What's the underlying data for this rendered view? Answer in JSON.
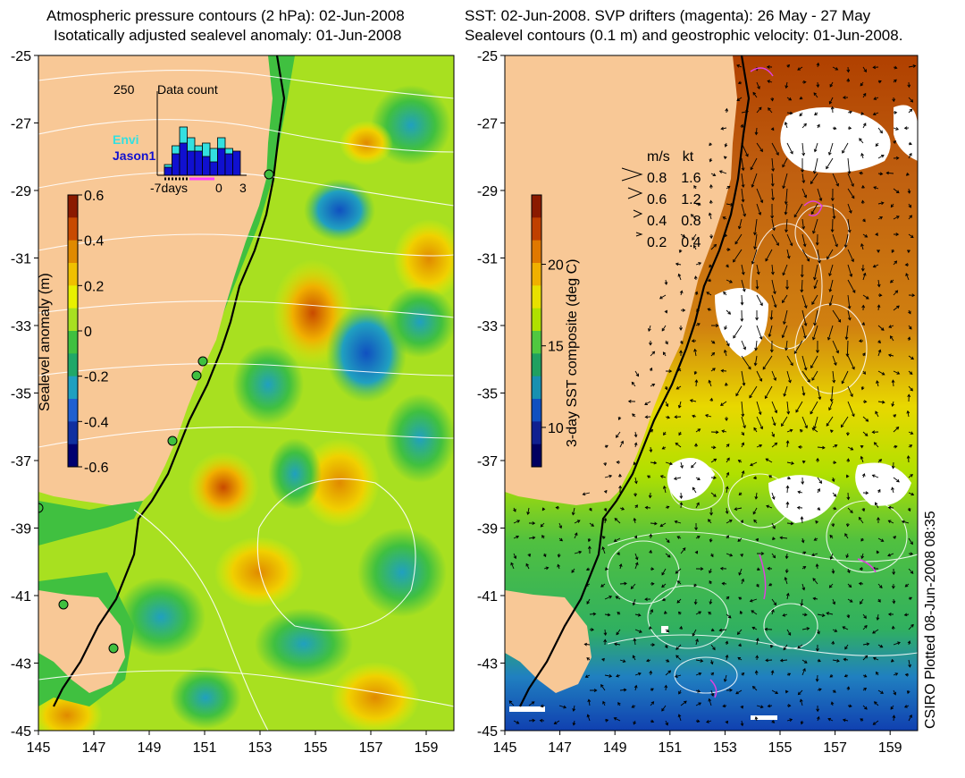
{
  "left": {
    "title_line1": "Atmospheric pressure contours (2 hPa): 02-Jun-2008",
    "title_line2": "Isotatically adjusted sealevel anomaly: 01-Jun-2008",
    "colorbar": {
      "label": "Sealevel anomaly (m)",
      "ticks": [
        "0.6",
        "0.4",
        "0.2",
        "0",
        "-0.2",
        "-0.4",
        "-0.6"
      ],
      "colors": [
        "#8b1a00",
        "#c84a00",
        "#e08a00",
        "#f0c000",
        "#e8f000",
        "#a8e020",
        "#40c040",
        "#20a868",
        "#20a0c0",
        "#2060d0",
        "#1030a0",
        "#000070"
      ]
    },
    "inset": {
      "title": "Data count",
      "ymax": "250",
      "legend": [
        "Envi",
        "Jason1"
      ],
      "legend_colors": [
        "#33e0e0",
        "#1010d0"
      ],
      "xticks": [
        "-7days",
        "0",
        "3"
      ],
      "cyan_bars": [
        0.2,
        0.55,
        0.9,
        0.7,
        0.55,
        0.6,
        0.5,
        0.7,
        0.5,
        0
      ],
      "blue_bars": [
        0.15,
        0.4,
        0.6,
        0.45,
        0.45,
        0.35,
        0.25,
        0.5,
        0.4,
        0.45
      ]
    }
  },
  "right": {
    "title_line1": "SST: 02-Jun-2008. SVP drifters (magenta): 26 May - 27 May",
    "title_line2": "Sealevel contours (0.1 m) and geostrophic velocity: 01-Jun-2008.",
    "colorbar": {
      "label": "3-day SST composite (deg C)",
      "ticks": [
        "20",
        "15",
        "10"
      ],
      "colors": [
        "#8b1a00",
        "#c04000",
        "#e07800",
        "#f0b000",
        "#e8e000",
        "#b0e000",
        "#50c840",
        "#20a060",
        "#1890b0",
        "#1050c0",
        "#102090",
        "#000060"
      ]
    },
    "velocity_legend": {
      "header_ms": "m/s",
      "header_kt": "kt",
      "rows": [
        {
          "ms": "0.8",
          "kt": "1.6"
        },
        {
          "ms": "0.6",
          "kt": "1.2"
        },
        {
          "ms": "0.4",
          "kt": "0.8"
        },
        {
          "ms": "0.2",
          "kt": "0.4"
        }
      ]
    }
  },
  "axes": {
    "y_ticks": [
      "-25",
      "-27",
      "-29",
      "-31",
      "-33",
      "-35",
      "-37",
      "-39",
      "-41",
      "-43",
      "-45"
    ],
    "x_ticks": [
      "145",
      "147",
      "149",
      "151",
      "153",
      "155",
      "157",
      "159"
    ]
  },
  "credit": "CSIRO Plotted 08-Jun-2008 08:35",
  "colors": {
    "land": "#f8c896",
    "coast_line": "#000000",
    "contour": "#ffffff"
  }
}
